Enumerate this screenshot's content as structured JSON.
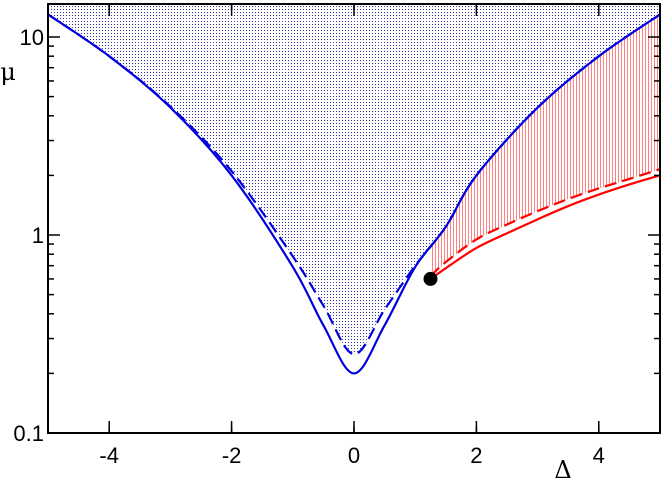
{
  "chart_data": {
    "type": "line",
    "title": "",
    "xlabel": "Δ",
    "ylabel": "μ",
    "xlim": [
      -5,
      5
    ],
    "ylim": [
      0.1,
      14
    ],
    "yscale": "log",
    "grid": false,
    "legend": "none",
    "x_ticks": [
      {
        "value": -4,
        "label": "-4"
      },
      {
        "value": -2,
        "label": "-2"
      },
      {
        "value": 0,
        "label": "0"
      },
      {
        "value": 2,
        "label": "2"
      },
      {
        "value": 4,
        "label": "4"
      }
    ],
    "y_ticks": [
      {
        "value": 0.1,
        "label": "0.1"
      },
      {
        "value": 1,
        "label": "1"
      },
      {
        "value": 10,
        "label": "10"
      }
    ],
    "colors": {
      "blue": "#0000dd",
      "red": "#ff0000",
      "blue_fill": "#2020a0",
      "red_fill": "#ff8080",
      "point": "#000000"
    },
    "series": [
      {
        "style": "blue-solid",
        "x": [
          -5,
          -4,
          -3,
          -2,
          -1,
          -0.5,
          0,
          0.5,
          1,
          1.5,
          2,
          3,
          4,
          5
        ],
        "y": [
          13.0,
          8.0,
          4.4,
          2.0,
          0.69,
          0.35,
          0.2,
          0.35,
          0.69,
          1.1,
          2.0,
          4.4,
          8.0,
          13.0
        ]
      },
      {
        "style": "blue-dashed",
        "x": [
          -5,
          -4,
          -3,
          -2,
          -1,
          -0.5,
          0,
          0.5,
          1,
          1.5,
          2,
          3,
          4,
          5
        ],
        "y": [
          13.0,
          8.0,
          4.45,
          2.1,
          0.78,
          0.44,
          0.25,
          0.42,
          0.7,
          1.1,
          2.0,
          4.4,
          8.0,
          13.0
        ]
      },
      {
        "style": "red-solid",
        "x": [
          1.25,
          1.5,
          2,
          2.5,
          3,
          3.5,
          4,
          4.5,
          5
        ],
        "y": [
          0.6,
          0.68,
          0.86,
          1.02,
          1.2,
          1.4,
          1.6,
          1.8,
          2.0
        ]
      },
      {
        "style": "red-dashed",
        "x": [
          1.25,
          1.5,
          2,
          2.5,
          3,
          3.5,
          4,
          4.5,
          5
        ],
        "y": [
          0.62,
          0.73,
          0.95,
          1.13,
          1.32,
          1.52,
          1.72,
          1.92,
          2.15
        ]
      }
    ],
    "point": {
      "x": 1.25,
      "y": 0.6
    }
  }
}
